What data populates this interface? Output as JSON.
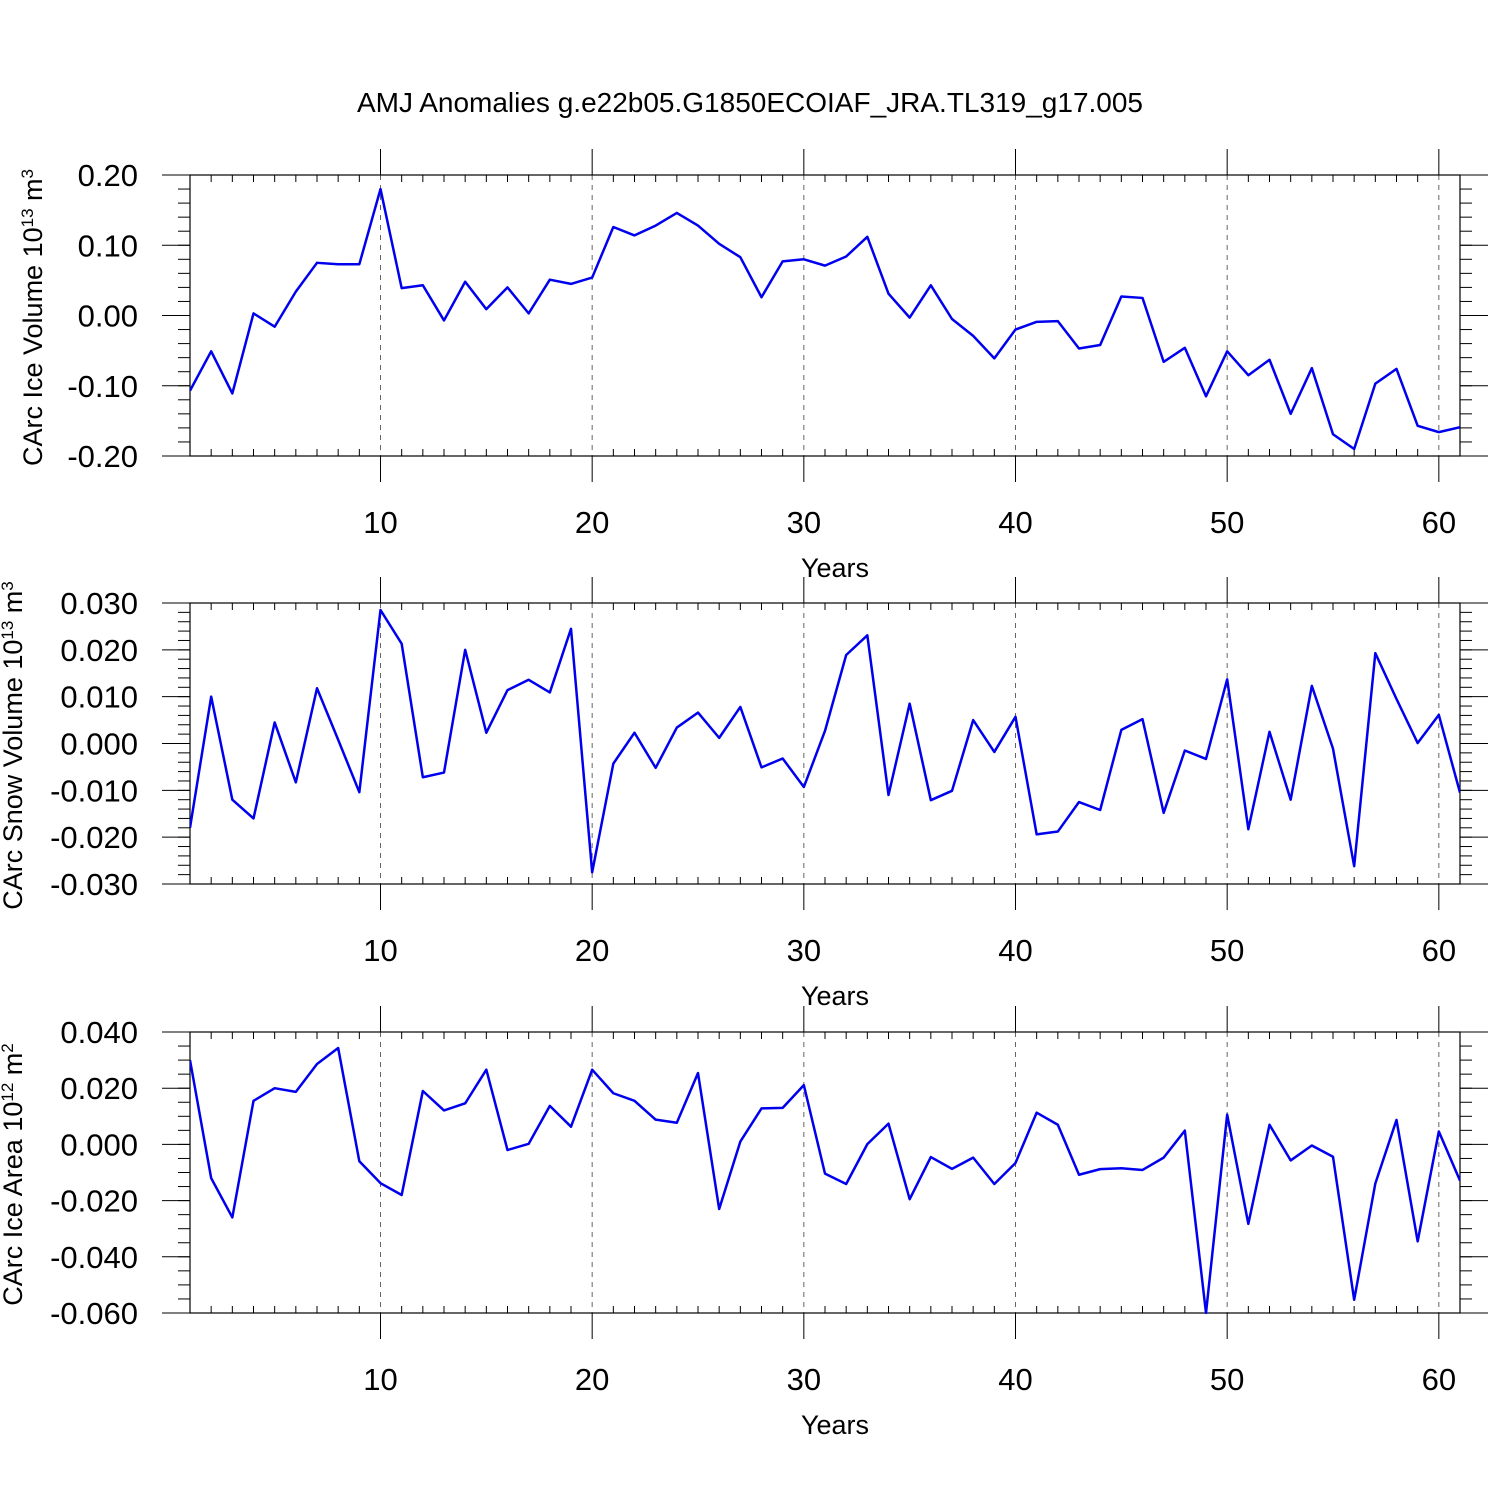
{
  "chart_data": [
    {
      "type": "line",
      "title": "AMJ Anomalies g.e22b05.G1850ECOIAF_JRA.TL319_g17.005",
      "xlabel": "Years",
      "ylabel": "CArc Ice Volume 10",
      "ylabel_exponent": "13",
      "ylabel_unit": "m",
      "ylabel_unit_exponent": "3",
      "xlim": [
        1,
        61
      ],
      "ylim": [
        -0.2,
        0.2
      ],
      "x_ticks": [
        10,
        20,
        30,
        40,
        50,
        60
      ],
      "x_tick_labels": [
        "10",
        "20",
        "30",
        "40",
        "50",
        "60"
      ],
      "y_ticks": [
        -0.2,
        -0.1,
        0.0,
        0.1,
        0.2
      ],
      "y_tick_labels": [
        "-0.20",
        "-0.10",
        "0.00",
        "0.10",
        "0.20"
      ],
      "y_minor_step": 0.02,
      "x_grid": true,
      "color": "#0000ee",
      "series": [
        {
          "name": "CArc Ice Volume",
          "values": [
            -0.107,
            -0.051,
            -0.111,
            0.003,
            -0.016,
            0.034,
            0.075,
            0.073,
            0.073,
            0.18,
            0.039,
            0.043,
            -0.007,
            0.048,
            0.009,
            0.04,
            0.003,
            0.051,
            0.045,
            0.054,
            0.126,
            0.114,
            0.128,
            0.146,
            0.128,
            0.102,
            0.083,
            0.026,
            0.077,
            0.08,
            0.071,
            0.084,
            0.112,
            0.031,
            -0.003,
            0.043,
            -0.005,
            -0.029,
            -0.061,
            -0.02,
            -0.009,
            -0.008,
            -0.047,
            -0.042,
            0.027,
            0.025,
            -0.066,
            -0.046,
            -0.115,
            -0.051,
            -0.085,
            -0.063,
            -0.14,
            -0.075,
            -0.169,
            -0.19,
            -0.097,
            -0.076,
            -0.157,
            -0.166,
            -0.159
          ]
        }
      ]
    },
    {
      "type": "line",
      "xlabel": "Years",
      "ylabel": "CArc Snow Volume 10",
      "ylabel_exponent": "13",
      "ylabel_unit": "m",
      "ylabel_unit_exponent": "3",
      "xlim": [
        1,
        61
      ],
      "ylim": [
        -0.03,
        0.03
      ],
      "x_ticks": [
        10,
        20,
        30,
        40,
        50,
        60
      ],
      "x_tick_labels": [
        "10",
        "20",
        "30",
        "40",
        "50",
        "60"
      ],
      "y_ticks": [
        -0.03,
        -0.02,
        -0.01,
        0.0,
        0.01,
        0.02,
        0.03
      ],
      "y_tick_labels": [
        "-0.030",
        "-0.020",
        "-0.010",
        "0.000",
        "0.010",
        "0.020",
        "0.030"
      ],
      "y_minor_step": 0.002,
      "x_grid": true,
      "color": "#0000ee",
      "series": [
        {
          "name": "CArc Snow Volume",
          "values": [
            -0.018,
            0.01,
            -0.012,
            -0.016,
            0.0045,
            -0.0083,
            0.0118,
            0.0008,
            -0.0104,
            0.0285,
            0.0213,
            -0.0072,
            -0.0062,
            0.02,
            0.0023,
            0.0114,
            0.0136,
            0.0109,
            0.0245,
            -0.0275,
            -0.0043,
            0.0023,
            -0.0052,
            0.0034,
            0.0066,
            0.0012,
            0.0078,
            -0.0051,
            -0.0032,
            -0.0093,
            0.0027,
            0.0189,
            0.0231,
            -0.011,
            0.0085,
            -0.0121,
            -0.0101,
            0.005,
            -0.0018,
            0.0057,
            -0.0194,
            -0.0188,
            -0.0125,
            -0.0142,
            0.0029,
            0.0052,
            -0.0148,
            -0.0015,
            -0.0033,
            0.0137,
            -0.0183,
            0.0025,
            -0.012,
            0.0123,
            -0.0011,
            -0.0262,
            0.0193,
            0.0095,
            0.0001,
            0.0061,
            -0.0105
          ]
        }
      ]
    },
    {
      "type": "line",
      "xlabel": "Years",
      "ylabel": "CArc Ice Area 10",
      "ylabel_exponent": "12",
      "ylabel_unit": "m",
      "ylabel_unit_exponent": "2",
      "xlim": [
        1,
        61
      ],
      "ylim": [
        -0.06,
        0.04
      ],
      "x_ticks": [
        10,
        20,
        30,
        40,
        50,
        60
      ],
      "x_tick_labels": [
        "10",
        "20",
        "30",
        "40",
        "50",
        "60"
      ],
      "y_ticks": [
        -0.06,
        -0.04,
        -0.02,
        0.0,
        0.02,
        0.04
      ],
      "y_tick_labels": [
        "-0.060",
        "-0.040",
        "-0.020",
        "0.000",
        "0.020",
        "0.040"
      ],
      "y_minor_step": 0.005,
      "x_grid": true,
      "color": "#0000ee",
      "series": [
        {
          "name": "CArc Ice Area",
          "values": [
            0.03,
            -0.012,
            -0.026,
            0.0155,
            0.02,
            0.0187,
            0.0286,
            0.0343,
            -0.006,
            -0.0138,
            -0.018,
            0.019,
            0.0121,
            0.0146,
            0.0266,
            -0.002,
            0.0002,
            0.0137,
            0.0063,
            0.0266,
            0.0182,
            0.0155,
            0.0088,
            0.0077,
            0.0254,
            -0.023,
            0.001,
            0.0128,
            0.013,
            0.0211,
            -0.0104,
            -0.0141,
            0.0001,
            0.0074,
            -0.0195,
            -0.0045,
            -0.0087,
            -0.0047,
            -0.0141,
            -0.0066,
            0.0113,
            0.007,
            -0.0108,
            -0.0088,
            -0.0085,
            -0.0091,
            -0.0047,
            0.0049,
            -0.06,
            0.0106,
            -0.0283,
            0.007,
            -0.0057,
            -0.0004,
            -0.0044,
            -0.0553,
            -0.0139,
            0.0087,
            -0.0345,
            0.0046,
            -0.0129
          ]
        }
      ]
    }
  ]
}
